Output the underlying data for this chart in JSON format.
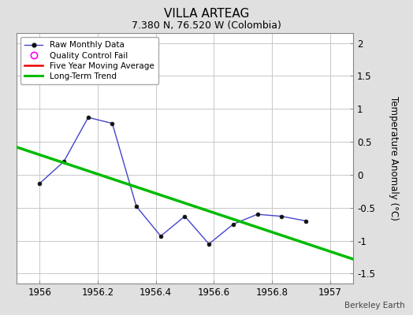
{
  "title": "VILLA ARTEAG",
  "subtitle": "7.380 N, 76.520 W (Colombia)",
  "ylabel": "Temperature Anomaly (°C)",
  "watermark": "Berkeley Earth",
  "xlim": [
    1955.92,
    1957.08
  ],
  "ylim": [
    -1.65,
    2.15
  ],
  "yticks": [
    -1.5,
    -1.0,
    -0.5,
    0.0,
    0.5,
    1.0,
    1.5,
    2.0
  ],
  "xticks": [
    1956,
    1956.2,
    1956.4,
    1956.6,
    1956.8,
    1957
  ],
  "raw_x": [
    1956.0,
    1956.083,
    1956.167,
    1956.25,
    1956.333,
    1956.417,
    1956.5,
    1956.583,
    1956.667,
    1956.75,
    1956.833,
    1956.917
  ],
  "raw_y": [
    -0.13,
    0.2,
    0.87,
    0.78,
    -0.48,
    -0.93,
    -0.63,
    -1.05,
    -0.75,
    -0.6,
    -0.63,
    -0.7
  ],
  "trend_x": [
    1955.92,
    1957.08
  ],
  "trend_y": [
    0.42,
    -1.28
  ],
  "bg_color": "#e0e0e0",
  "plot_bg_color": "#ffffff",
  "grid_color": "#c8c8c8",
  "raw_line_color": "#4444cc",
  "raw_marker_color": "#111111",
  "trend_color": "#00bb00",
  "moving_avg_color": "#ee0000",
  "qc_edge_color": "#ff00ff",
  "title_fontsize": 11,
  "subtitle_fontsize": 9,
  "tick_fontsize": 8.5,
  "ylabel_fontsize": 8.5
}
